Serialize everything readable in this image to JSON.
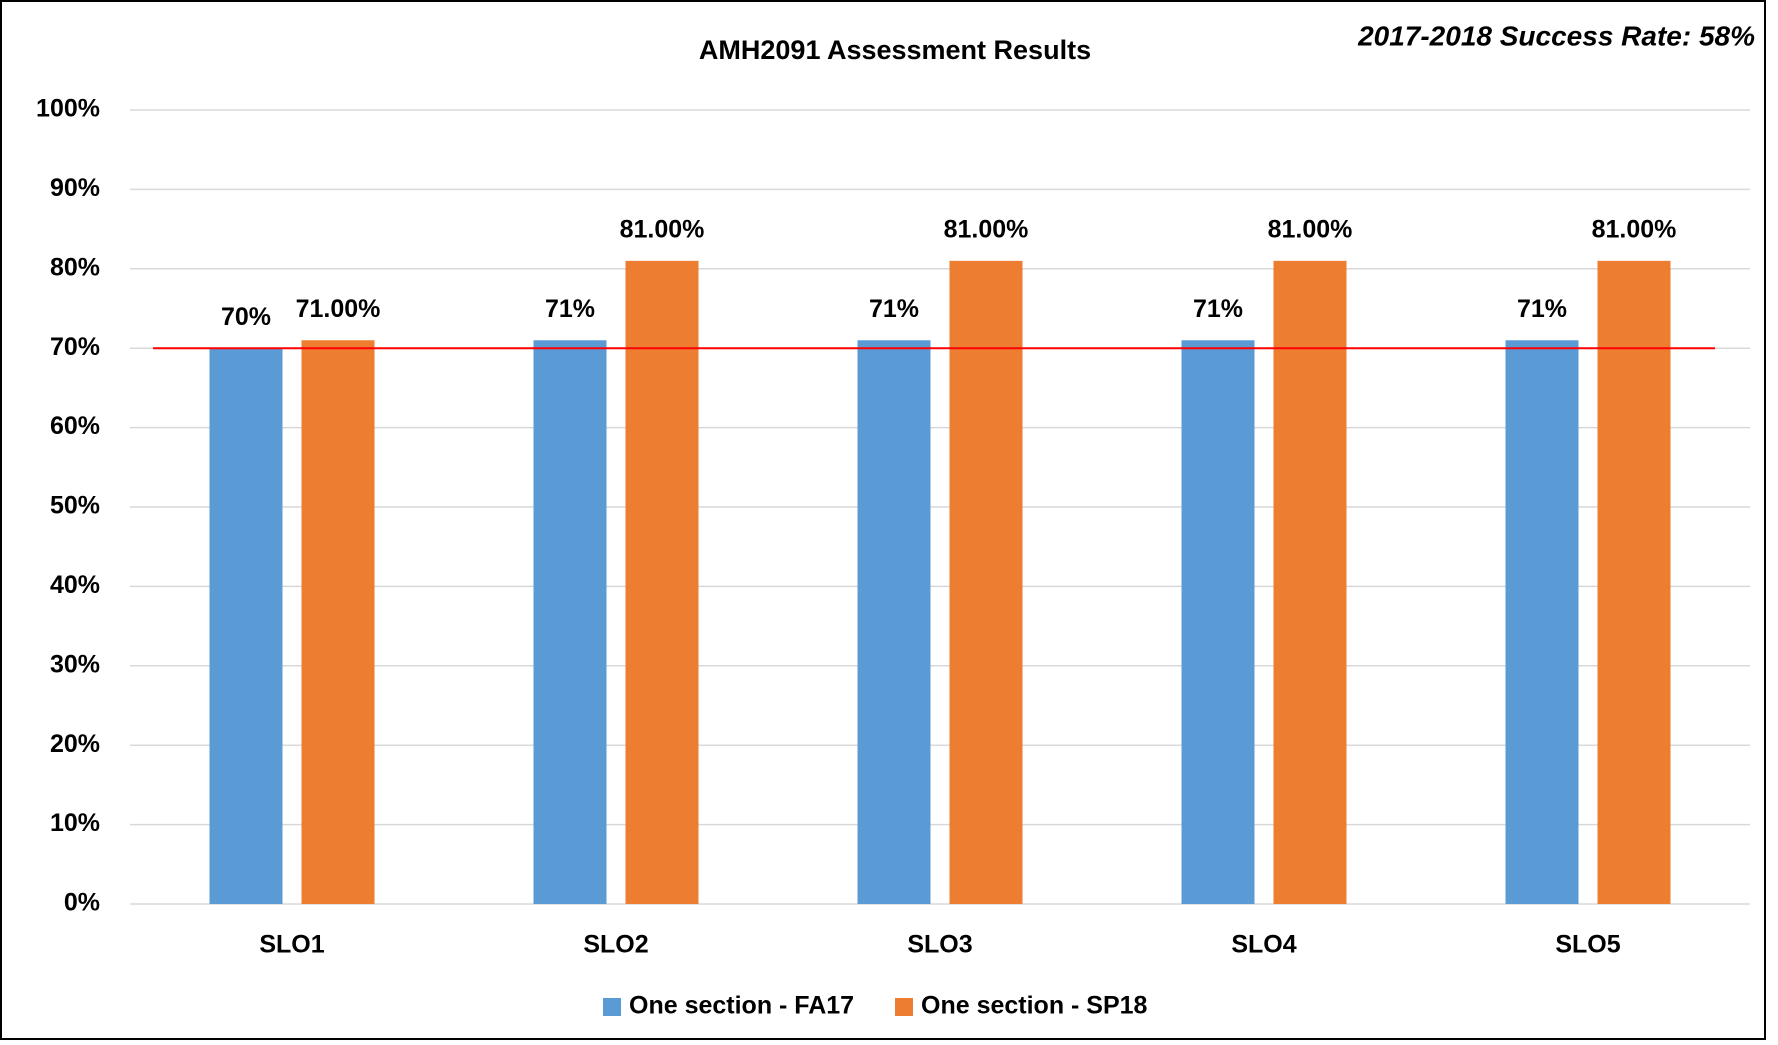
{
  "chart_data": {
    "type": "bar",
    "title": "AMH2091 Assessment Results",
    "annotation": "2017-2018 Success Rate: 58%",
    "categories": [
      "SLO1",
      "SLO2",
      "SLO3",
      "SLO4",
      "SLO5"
    ],
    "series": [
      {
        "name": "One section - FA17",
        "color": "#5b9bd5",
        "values": [
          70,
          71,
          71,
          71,
          71
        ],
        "value_labels": [
          "70%",
          "71%",
          "71%",
          "71%",
          "71%"
        ]
      },
      {
        "name": "One section - SP18",
        "color": "#ed7d31",
        "values": [
          71,
          81,
          81,
          81,
          81
        ],
        "value_labels": [
          "71.00%",
          "81.00%",
          "81.00%",
          "81.00%",
          "81.00%"
        ]
      }
    ],
    "reference_line": {
      "value": 70,
      "color": "#ff0000"
    },
    "ylim": [
      0,
      100
    ],
    "yticks": [
      {
        "value": 0,
        "label": "0%"
      },
      {
        "value": 10,
        "label": "10%"
      },
      {
        "value": 20,
        "label": "20%"
      },
      {
        "value": 30,
        "label": "30%"
      },
      {
        "value": 40,
        "label": "40%"
      },
      {
        "value": 50,
        "label": "50%"
      },
      {
        "value": 60,
        "label": "60%"
      },
      {
        "value": 70,
        "label": "70%"
      },
      {
        "value": 80,
        "label": "80%"
      },
      {
        "value": 90,
        "label": "90%"
      },
      {
        "value": 100,
        "label": "100%"
      }
    ],
    "grid": true,
    "legend": "bottom"
  }
}
